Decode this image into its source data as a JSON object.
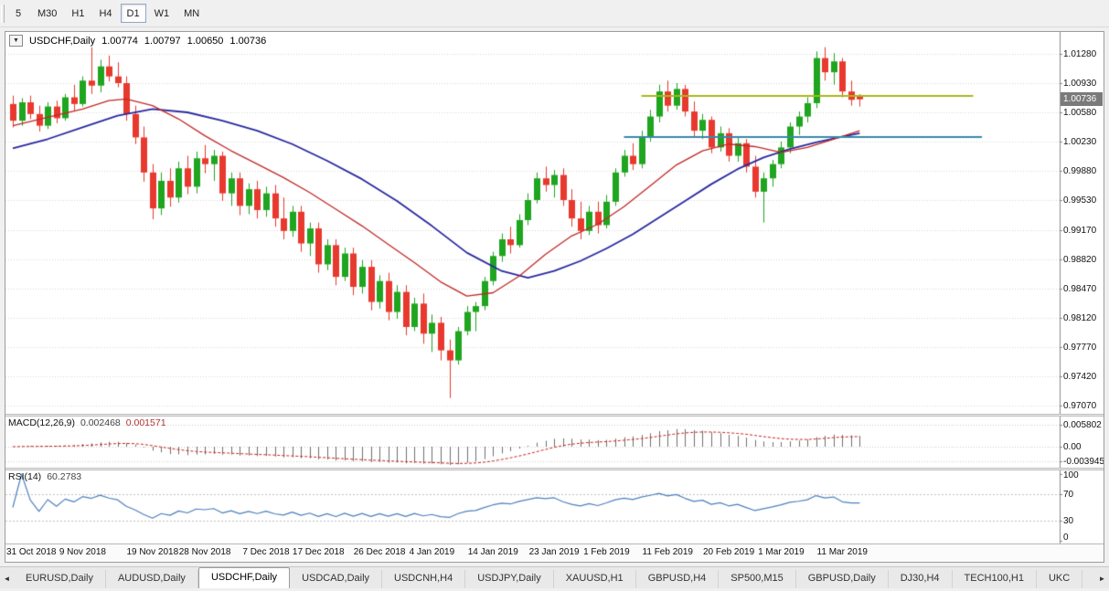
{
  "icons": {
    "chart_menu": "▼"
  },
  "toolbar": {
    "timeframes": [
      {
        "label": "5",
        "active": false
      },
      {
        "label": "M30",
        "active": false
      },
      {
        "label": "H1",
        "active": false
      },
      {
        "label": "H4",
        "active": false
      },
      {
        "label": "D1",
        "active": true
      },
      {
        "label": "W1",
        "active": false
      },
      {
        "label": "MN",
        "active": false
      }
    ]
  },
  "header": {
    "symbol": "USDCHF,Daily",
    "open": "1.00774",
    "high": "1.00797",
    "low": "1.00650",
    "close": "1.00736"
  },
  "price_axis": {
    "labels": [
      "1.01280",
      "1.00930",
      "1.00580",
      "1.00230",
      "0.99880",
      "0.99530",
      "0.99170",
      "0.98820",
      "0.98470",
      "0.98120",
      "0.97770",
      "0.97420",
      "0.97070"
    ],
    "current_price": "1.00736"
  },
  "macd_panel": {
    "name": "MACD(12,26,9)",
    "value_main": "0.002468",
    "value_signal": "0.001571",
    "axis_labels": [
      {
        "text": "0.005802",
        "value": 0.005802
      },
      {
        "text": "0.00",
        "value": 0
      },
      {
        "text": "-0.003945",
        "value": -0.003945
      }
    ]
  },
  "rsi_panel": {
    "name": "RSI(14)",
    "value": "60.2783",
    "axis_labels": [
      {
        "text": "100",
        "value": 100
      },
      {
        "text": "70",
        "value": 70
      },
      {
        "text": "30",
        "value": 30
      },
      {
        "text": "0",
        "value": 0
      }
    ],
    "level_lines": [
      70,
      30
    ]
  },
  "time_axis": [
    {
      "text": "31 Oct 2018",
      "idx": 0
    },
    {
      "text": "9 Nov 2018",
      "idx": 8
    },
    {
      "text": "19 Nov 2018",
      "idx": 16
    },
    {
      "text": "28 Nov 2018",
      "idx": 22
    },
    {
      "text": "7 Dec 2018",
      "idx": 29
    },
    {
      "text": "17 Dec 2018",
      "idx": 35
    },
    {
      "text": "26 Dec 2018",
      "idx": 42
    },
    {
      "text": "4 Jan 2019",
      "idx": 48
    },
    {
      "text": "14 Jan 2019",
      "idx": 55
    },
    {
      "text": "23 Jan 2019",
      "idx": 62
    },
    {
      "text": "1 Feb 2019",
      "idx": 68
    },
    {
      "text": "11 Feb 2019",
      "idx": 75
    },
    {
      "text": "20 Feb 2019",
      "idx": 82
    },
    {
      "text": "1 Mar 2019",
      "idx": 88
    },
    {
      "text": "11 Mar 2019",
      "idx": 95
    }
  ],
  "tabs": {
    "scroll_left": "◄",
    "scroll_right": "►",
    "items": [
      {
        "label": "EURUSD,Daily",
        "active": false
      },
      {
        "label": "AUDUSD,Daily",
        "active": false
      },
      {
        "label": "USDCHF,Daily",
        "active": true
      },
      {
        "label": "USDCAD,Daily",
        "active": false
      },
      {
        "label": "USDCNH,H4",
        "active": false
      },
      {
        "label": "USDJPY,Daily",
        "active": false
      },
      {
        "label": "XAUUSD,H1",
        "active": false
      },
      {
        "label": "GBPUSD,H4",
        "active": false
      },
      {
        "label": "SP500,M15",
        "active": false
      },
      {
        "label": "GBPUSD,Daily",
        "active": false
      },
      {
        "label": "DJ30,H4",
        "active": false
      },
      {
        "label": "TECH100,H1",
        "active": false
      },
      {
        "label": "UKC",
        "active": false
      }
    ]
  },
  "chart_data": {
    "type": "candlestick",
    "title": "USDCHF,Daily",
    "current_bar": {
      "open": 1.00774,
      "high": 1.00797,
      "low": 1.0065,
      "close": 1.00736
    },
    "indicators": {
      "macd": {
        "fast": 12,
        "slow": 26,
        "signal": 9
      },
      "rsi": {
        "period": 14
      }
    },
    "colors": {
      "up": "#1fa51f",
      "down": "#e8392e",
      "ma_fast": "#c22828",
      "ma_slow": "#2929a0",
      "hline1": "#a9b71d",
      "hline2": "#3a87ad",
      "macd_hist": "#6f6f6f",
      "macd_signal": "#cc2222",
      "rsi_line": "#4f81bd",
      "grid": "#d8d8d8",
      "axis_line": "#8a8a8a",
      "badge_bg": "#7a7a7a"
    },
    "overlays": {
      "hlines": [
        {
          "price": 1.00774,
          "from_idx": 72,
          "to_idx": 110,
          "color_key": "hline1",
          "width": 2
        },
        {
          "price": 1.0028,
          "from_idx": 70,
          "to_idx": 111,
          "color_key": "hline2",
          "width": 2
        }
      ],
      "ma_lines": [
        {
          "color_key": "ma_slow",
          "width": 1.8,
          "points": [
            [
              0,
              1.0015
            ],
            [
              4,
              1.0026
            ],
            [
              8,
              1.004
            ],
            [
              12,
              1.0054
            ],
            [
              16,
              1.0062
            ],
            [
              20,
              1.0058
            ],
            [
              24,
              1.0048
            ],
            [
              28,
              1.0036
            ],
            [
              32,
              1.002
            ],
            [
              36,
              1.0
            ],
            [
              40,
              0.9978
            ],
            [
              44,
              0.9952
            ],
            [
              48,
              0.9922
            ],
            [
              52,
              0.989
            ],
            [
              56,
              0.9868
            ],
            [
              59,
              0.986
            ],
            [
              62,
              0.9868
            ],
            [
              65,
              0.988
            ],
            [
              68,
              0.9895
            ],
            [
              71,
              0.9912
            ],
            [
              74,
              0.9932
            ],
            [
              77,
              0.9952
            ],
            [
              80,
              0.9972
            ],
            [
              83,
              0.999
            ],
            [
              86,
              1.0004
            ],
            [
              89,
              1.0014
            ],
            [
              92,
              1.0022
            ],
            [
              95,
              1.0029
            ],
            [
              97,
              1.0033
            ]
          ]
        },
        {
          "color_key": "ma_fast",
          "width": 1.3,
          "points": [
            [
              0,
              1.0042
            ],
            [
              4,
              1.0052
            ],
            [
              8,
              1.0062
            ],
            [
              11,
              1.0072
            ],
            [
              13,
              1.0074
            ],
            [
              16,
              1.0066
            ],
            [
              19,
              1.005
            ],
            [
              22,
              1.003
            ],
            [
              25,
              1.0012
            ],
            [
              28,
              0.9996
            ],
            [
              31,
              0.998
            ],
            [
              34,
              0.9962
            ],
            [
              37,
              0.9942
            ],
            [
              40,
              0.9922
            ],
            [
              43,
              0.99
            ],
            [
              46,
              0.9878
            ],
            [
              49,
              0.9855
            ],
            [
              52,
              0.9838
            ],
            [
              55,
              0.9842
            ],
            [
              58,
              0.9862
            ],
            [
              61,
              0.9888
            ],
            [
              64,
              0.991
            ],
            [
              67,
              0.9924
            ],
            [
              70,
              0.9945
            ],
            [
              73,
              0.997
            ],
            [
              76,
              0.9995
            ],
            [
              79,
              1.0012
            ],
            [
              82,
              1.002
            ],
            [
              85,
              1.0017
            ],
            [
              88,
              1.001
            ],
            [
              91,
              1.0016
            ],
            [
              94,
              1.0026
            ],
            [
              97,
              1.0036
            ]
          ]
        }
      ]
    },
    "ohlc": [
      [
        1.0068,
        1.0078,
        1.004,
        1.0048
      ],
      [
        1.0048,
        1.0075,
        1.0042,
        1.007
      ],
      [
        1.007,
        1.0078,
        1.005,
        1.0056
      ],
      [
        1.0056,
        1.0066,
        1.0035,
        1.0042
      ],
      [
        1.0042,
        1.007,
        1.0038,
        1.0065
      ],
      [
        1.0065,
        1.0072,
        1.0045,
        1.0051
      ],
      [
        1.0051,
        1.008,
        1.0048,
        1.0076
      ],
      [
        1.0076,
        1.0091,
        1.006,
        1.0068
      ],
      [
        1.0068,
        1.0101,
        1.0065,
        1.0096
      ],
      [
        1.0096,
        1.0136,
        1.008,
        1.009
      ],
      [
        1.009,
        1.0121,
        1.0082,
        1.0113
      ],
      [
        1.0113,
        1.0126,
        1.0095,
        1.0101
      ],
      [
        1.0101,
        1.0118,
        1.0088,
        1.0093
      ],
      [
        1.0093,
        1.0101,
        1.0048,
        1.0056
      ],
      [
        1.0056,
        1.0066,
        1.002,
        1.0028
      ],
      [
        1.0028,
        1.0041,
        0.9975,
        0.9986
      ],
      [
        0.9986,
        0.9996,
        0.993,
        0.9943
      ],
      [
        0.9943,
        0.9986,
        0.9935,
        0.9976
      ],
      [
        0.9976,
        0.9991,
        0.9945,
        0.9956
      ],
      [
        0.9956,
        0.9999,
        0.995,
        0.9991
      ],
      [
        0.9991,
        1.0006,
        0.996,
        0.9969
      ],
      [
        0.9969,
        1.0011,
        0.9961,
        1.0003
      ],
      [
        1.0003,
        1.0019,
        0.9985,
        0.9996
      ],
      [
        0.9996,
        1.0013,
        0.9976,
        1.0006
      ],
      [
        1.0006,
        1.0011,
        0.9952,
        0.9961
      ],
      [
        0.9961,
        0.9986,
        0.9946,
        0.9979
      ],
      [
        0.9979,
        0.9986,
        0.9935,
        0.9946
      ],
      [
        0.9946,
        0.9973,
        0.9936,
        0.9966
      ],
      [
        0.9966,
        0.9976,
        0.9931,
        0.9941
      ],
      [
        0.9941,
        0.9969,
        0.9933,
        0.9961
      ],
      [
        0.9961,
        0.9971,
        0.9921,
        0.9931
      ],
      [
        0.9931,
        0.9956,
        0.9906,
        0.9916
      ],
      [
        0.9916,
        0.9946,
        0.9909,
        0.9939
      ],
      [
        0.9939,
        0.9946,
        0.9891,
        0.9901
      ],
      [
        0.9901,
        0.9926,
        0.9886,
        0.9919
      ],
      [
        0.9919,
        0.9926,
        0.9866,
        0.9876
      ],
      [
        0.9876,
        0.9906,
        0.9869,
        0.9899
      ],
      [
        0.9899,
        0.9906,
        0.9851,
        0.9861
      ],
      [
        0.9861,
        0.9896,
        0.9856,
        0.9889
      ],
      [
        0.9889,
        0.9896,
        0.9839,
        0.9849
      ],
      [
        0.9849,
        0.9881,
        0.9841,
        0.9873
      ],
      [
        0.9873,
        0.9881,
        0.9821,
        0.9831
      ],
      [
        0.9831,
        0.9863,
        0.9823,
        0.9856
      ],
      [
        0.9856,
        0.9866,
        0.9809,
        0.9819
      ],
      [
        0.9819,
        0.9851,
        0.9811,
        0.9843
      ],
      [
        0.9843,
        0.9851,
        0.9791,
        0.9801
      ],
      [
        0.9801,
        0.9836,
        0.9796,
        0.9829
      ],
      [
        0.9829,
        0.9841,
        0.9781,
        0.9793
      ],
      [
        0.9793,
        0.9816,
        0.9771,
        0.9806
      ],
      [
        0.9806,
        0.9813,
        0.9761,
        0.9773
      ],
      [
        0.9773,
        0.9786,
        0.9716,
        0.9761
      ],
      [
        0.9761,
        0.9801,
        0.9756,
        0.9796
      ],
      [
        0.9796,
        0.9826,
        0.9791,
        0.9819
      ],
      [
        0.9819,
        0.9831,
        0.9796,
        0.9826
      ],
      [
        0.9826,
        0.9861,
        0.9821,
        0.9856
      ],
      [
        0.9856,
        0.9891,
        0.9851,
        0.9886
      ],
      [
        0.9886,
        0.9913,
        0.9879,
        0.9906
      ],
      [
        0.9906,
        0.9921,
        0.9889,
        0.9899
      ],
      [
        0.9899,
        0.9936,
        0.9896,
        0.9929
      ],
      [
        0.9929,
        0.9961,
        0.9923,
        0.9953
      ],
      [
        0.9953,
        0.9986,
        0.9949,
        0.9979
      ],
      [
        0.9979,
        0.9993,
        0.9963,
        0.9971
      ],
      [
        0.9971,
        0.9989,
        0.9956,
        0.9983
      ],
      [
        0.9983,
        0.9991,
        0.9946,
        0.9953
      ],
      [
        0.9953,
        0.9966,
        0.9921,
        0.9931
      ],
      [
        0.9931,
        0.9951,
        0.9906,
        0.9916
      ],
      [
        0.9916,
        0.9946,
        0.9911,
        0.9939
      ],
      [
        0.9939,
        0.9951,
        0.9913,
        0.9923
      ],
      [
        0.9923,
        0.9959,
        0.9919,
        0.9951
      ],
      [
        0.9951,
        0.9991,
        0.9946,
        0.9986
      ],
      [
        0.9986,
        1.0013,
        0.9981,
        1.0006
      ],
      [
        1.0006,
        1.0021,
        0.9989,
        0.9996
      ],
      [
        0.9996,
        1.0036,
        0.9991,
        1.0029
      ],
      [
        1.0029,
        1.0061,
        1.0023,
        1.0053
      ],
      [
        1.0053,
        1.0091,
        1.0046,
        1.0083
      ],
      [
        1.0083,
        1.0096,
        1.0059,
        1.0066
      ],
      [
        1.0066,
        1.0093,
        1.0061,
        1.0086
      ],
      [
        1.0086,
        1.0091,
        1.0053,
        1.0059
      ],
      [
        1.0059,
        1.0071,
        1.0029,
        1.0036
      ],
      [
        1.0036,
        1.0056,
        1.0026,
        1.0049
      ],
      [
        1.0049,
        1.0053,
        1.0009,
        1.0016
      ],
      [
        1.0016,
        1.0041,
        1.0011,
        1.0033
      ],
      [
        1.0033,
        1.0039,
        0.9999,
        1.0006
      ],
      [
        1.0006,
        1.0029,
        0.9999,
        1.0021
      ],
      [
        1.0021,
        1.0026,
        0.9986,
        0.9993
      ],
      [
        0.9993,
        1.0006,
        0.9956,
        0.9963
      ],
      [
        0.9963,
        0.9986,
        0.9926,
        0.9979
      ],
      [
        0.9979,
        1.0001,
        0.9969,
        0.9996
      ],
      [
        0.9996,
        1.0023,
        0.9991,
        1.0016
      ],
      [
        1.0016,
        1.0046,
        1.0009,
        1.0041
      ],
      [
        1.0041,
        1.0059,
        1.0031,
        1.0053
      ],
      [
        1.0053,
        1.0076,
        1.0046,
        1.0069
      ],
      [
        1.0069,
        1.0131,
        1.0063,
        1.0123
      ],
      [
        1.0123,
        1.0136,
        1.0096,
        1.0106
      ],
      [
        1.0106,
        1.0129,
        1.0091,
        1.0119
      ],
      [
        1.0119,
        1.0123,
        1.0076,
        1.0083
      ],
      [
        1.0083,
        1.0096,
        1.0066,
        1.0073
      ],
      [
        1.00774,
        1.00797,
        1.0065,
        1.00736
      ]
    ]
  }
}
